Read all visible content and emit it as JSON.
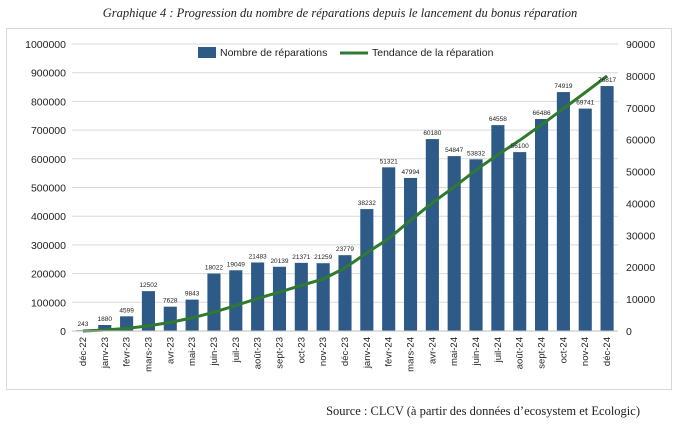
{
  "caption": "Graphique 4 : Progression du nombre de réparations depuis le lancement du bonus réparation",
  "source": "Source : CLCV (à partir des données d’ecosystem et Ecologic)",
  "chart_data": {
    "type": "bar",
    "categories": [
      "déc-22",
      "janv-23",
      "févr-23",
      "mars-23",
      "avr-23",
      "mai-23",
      "juin-23",
      "juil-23",
      "août-23",
      "sept-23",
      "oct-23",
      "nov-23",
      "déc-23",
      "janv-24",
      "févr-24",
      "mars-24",
      "avr-24",
      "mai-24",
      "juin-24",
      "juil-24",
      "août-24",
      "sept-24",
      "oct-24",
      "nov-24",
      "déc-24"
    ],
    "series": [
      {
        "name": "Nombre de réparations",
        "type": "bar",
        "axis": "right",
        "color": "#2e5a87",
        "values": [
          243,
          1880,
          4599,
          12502,
          7628,
          9843,
          18022,
          19049,
          21483,
          20139,
          21371,
          21259,
          23779,
          38232,
          51321,
          47994,
          60180,
          54847,
          53832,
          64558,
          56100,
          66486,
          74919,
          69741,
          76817
        ]
      },
      {
        "name": "Tendance de la réparation",
        "type": "line",
        "axis": "right",
        "color": "#2f7a2f",
        "values": [
          0,
          300,
          800,
          1600,
          2700,
          4100,
          5900,
          8000,
          10200,
          12200,
          14300,
          16300,
          19800,
          24500,
          29000,
          34700,
          40200,
          45200,
          50500,
          55300,
          59800,
          64700,
          69700,
          74800,
          80000
        ]
      }
    ],
    "left_axis": {
      "min": 0,
      "max": 1000000,
      "ticks": [
        "0",
        "100000",
        "200000",
        "300000",
        "400000",
        "500000",
        "600000",
        "700000",
        "800000",
        "900000",
        "1000000"
      ]
    },
    "right_axis": {
      "min": 0,
      "max": 90000,
      "ticks": [
        "0",
        "10000",
        "20000",
        "30000",
        "40000",
        "50000",
        "60000",
        "70000",
        "80000",
        "90000"
      ]
    },
    "legend_position": "top-center",
    "grid": true
  }
}
